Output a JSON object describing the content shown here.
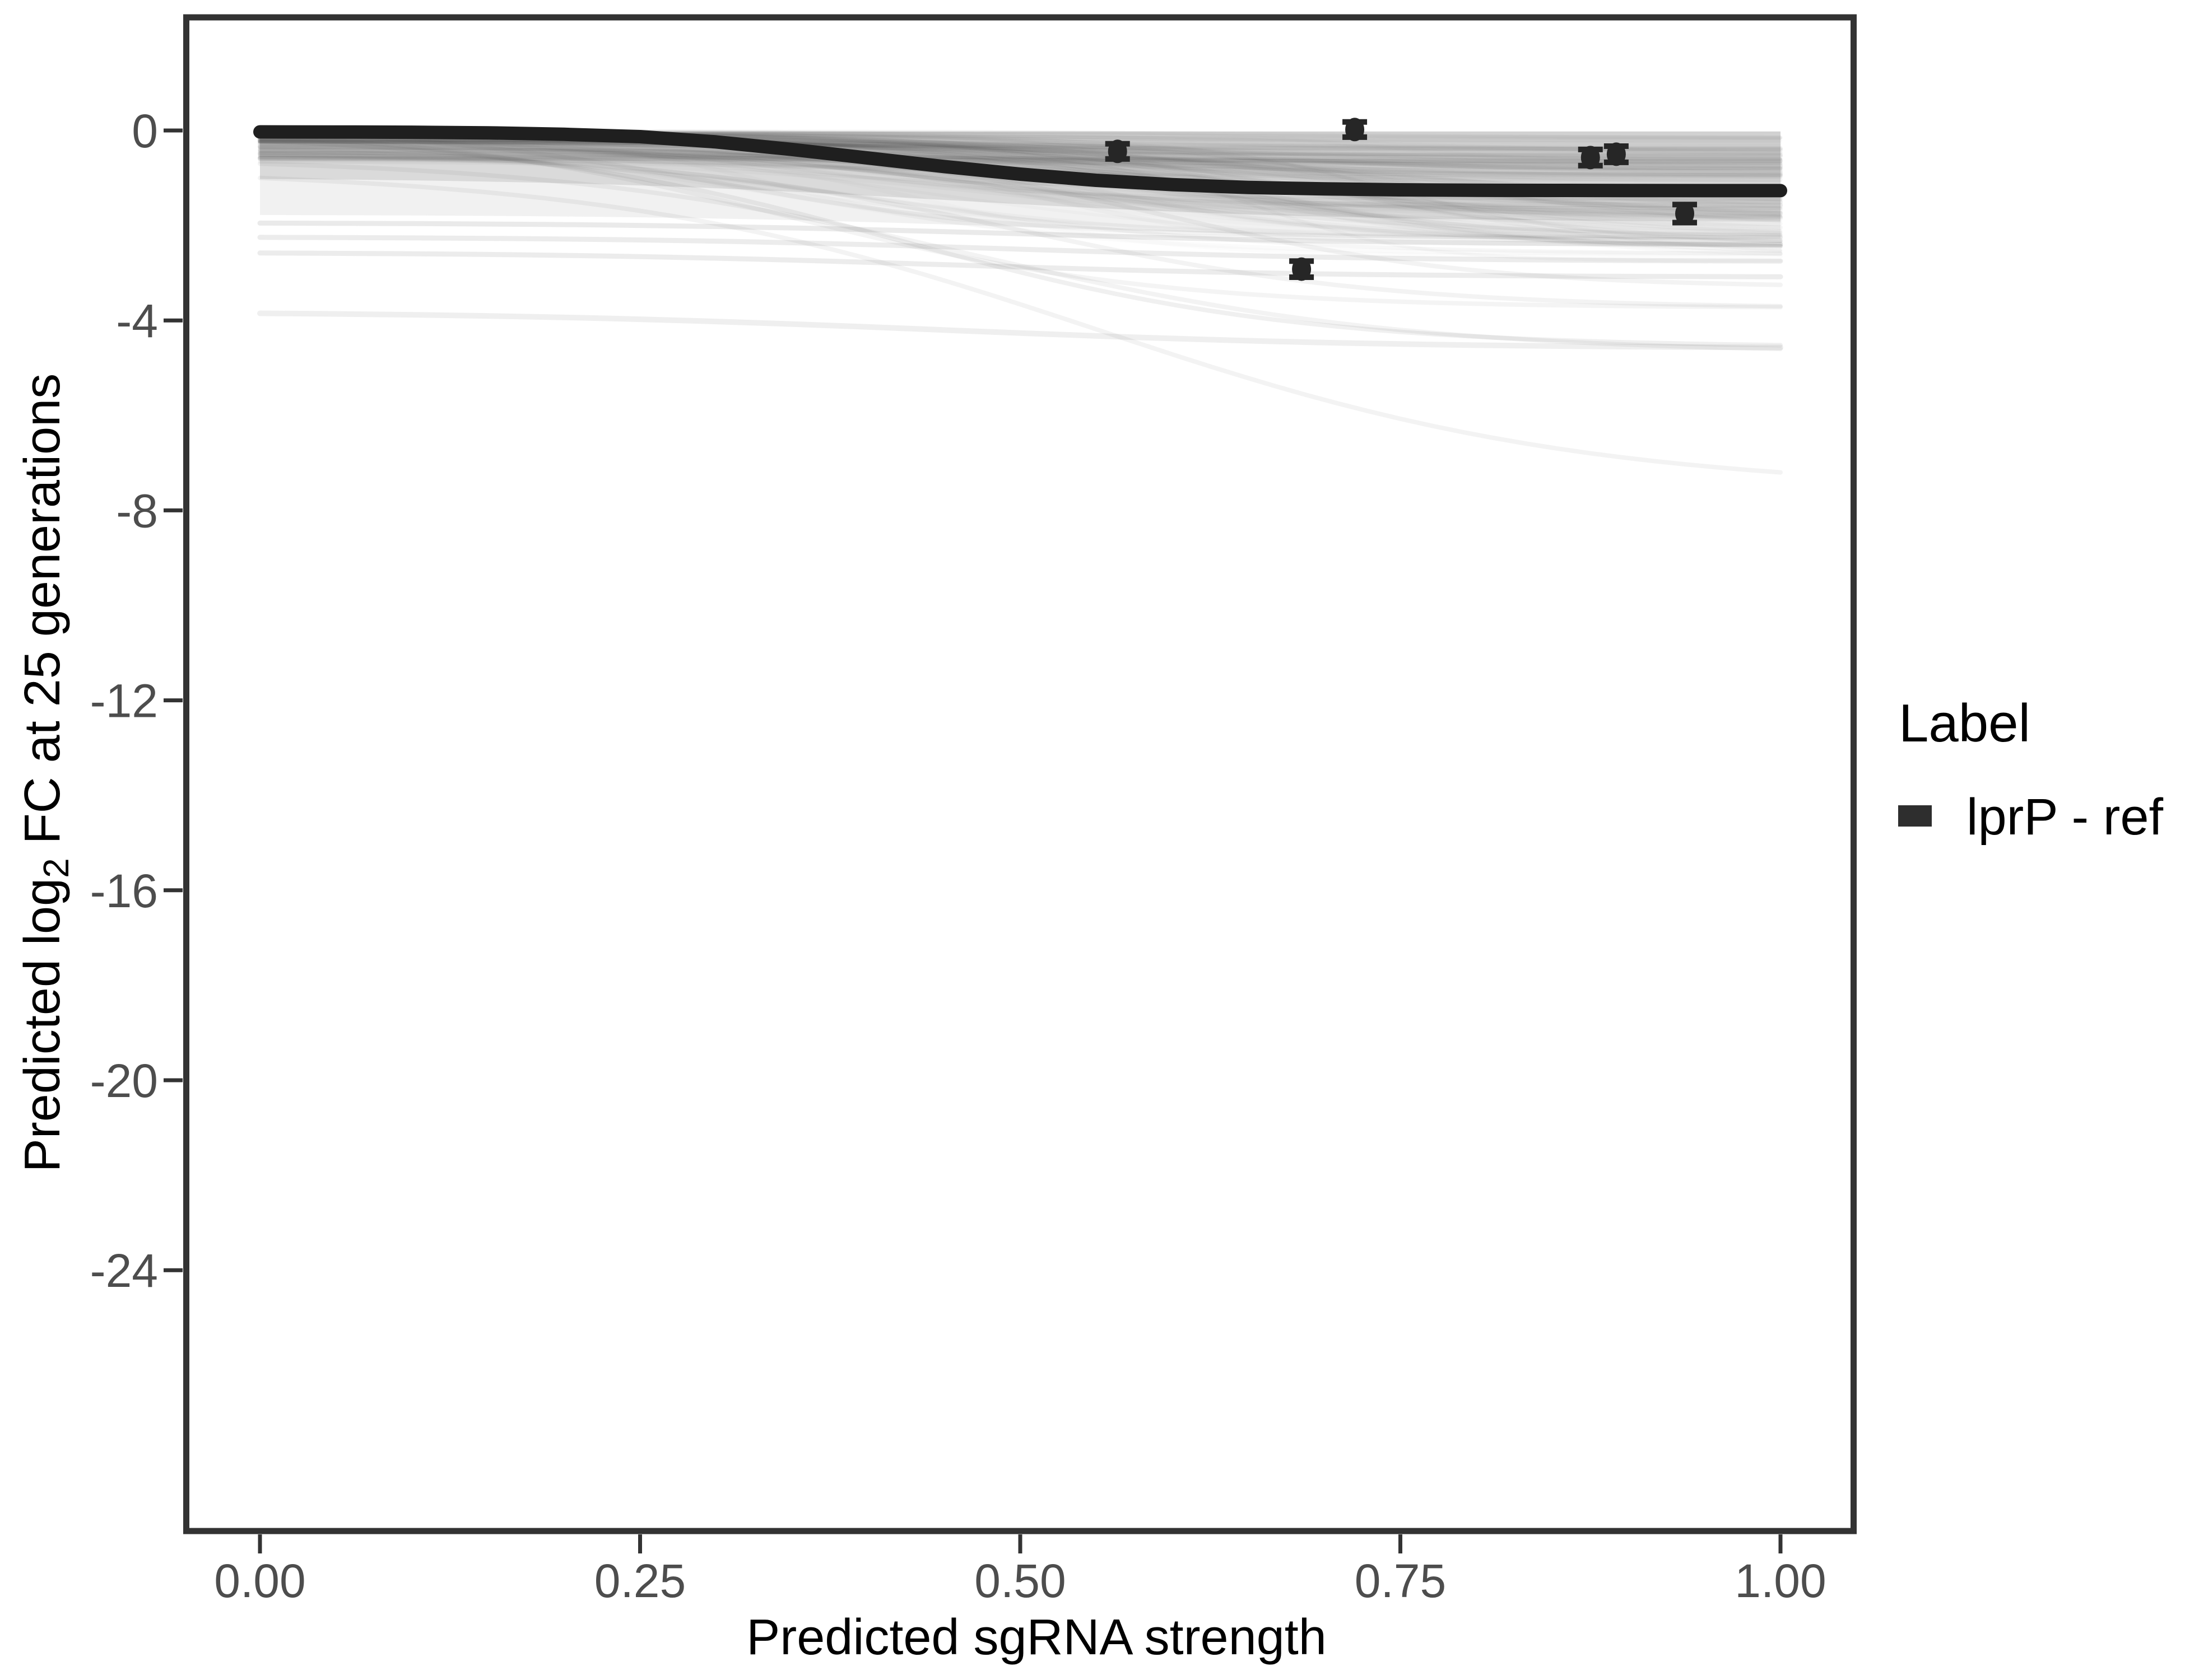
{
  "chart_data": {
    "type": "line",
    "title": "",
    "xlabel": "Predicted sgRNA strength",
    "ylabel": "Predicted  log2 FC at 25 generations",
    "ylabel_parts": {
      "pre": "Predicted  log",
      "sub": "2",
      "post": " FC at 25 generations"
    },
    "grid": false,
    "xlim": [
      -0.049,
      1.048
    ],
    "ylim": [
      -29.5,
      2.4
    ],
    "x_axis": {
      "ticks": [
        0,
        0.25,
        0.5,
        0.75,
        1.0
      ],
      "labels": [
        "0.00",
        "0.25",
        "0.50",
        "0.75",
        "1.00"
      ]
    },
    "y_axis": {
      "ticks": [
        0,
        -4,
        -8,
        -12,
        -16,
        -20,
        -24
      ],
      "labels": [
        "0",
        "-4",
        "-8",
        "-12",
        "-16",
        "-20",
        "-24"
      ]
    },
    "legend": {
      "title": "Label",
      "position": "right",
      "entries": [
        {
          "label": "lprP - ref",
          "color": "#2e2e2e"
        }
      ]
    },
    "main_curve": {
      "name": "lprP - ref",
      "color": "#1f1f1f",
      "points": [
        [
          0.0,
          -0.03
        ],
        [
          0.05,
          -0.032
        ],
        [
          0.1,
          -0.036
        ],
        [
          0.15,
          -0.05
        ],
        [
          0.2,
          -0.08
        ],
        [
          0.25,
          -0.13
        ],
        [
          0.3,
          -0.24
        ],
        [
          0.35,
          -0.4
        ],
        [
          0.4,
          -0.58
        ],
        [
          0.45,
          -0.76
        ],
        [
          0.5,
          -0.92
        ],
        [
          0.55,
          -1.05
        ],
        [
          0.6,
          -1.14
        ],
        [
          0.65,
          -1.2
        ],
        [
          0.7,
          -1.23
        ],
        [
          0.75,
          -1.25
        ],
        [
          0.8,
          -1.26
        ],
        [
          0.85,
          -1.262
        ],
        [
          0.9,
          -1.265
        ],
        [
          0.95,
          -1.266
        ],
        [
          1.0,
          -1.266
        ]
      ]
    },
    "measured_points": [
      {
        "x": 0.564,
        "y": -0.44,
        "err": 0.16
      },
      {
        "x": 0.72,
        "y": 0.02,
        "err": 0.16
      },
      {
        "x": 0.875,
        "y": -0.57,
        "err": 0.17
      },
      {
        "x": 0.892,
        "y": -0.5,
        "err": 0.17
      },
      {
        "x": 0.937,
        "y": -1.75,
        "err": 0.19
      },
      {
        "x": 0.685,
        "y": -2.92,
        "err": 0.17
      }
    ],
    "point_color": "#262626",
    "ensemble": {
      "description": "hundreds of semi-transparent grey sigmoid prediction curves spanning x 0 to 1",
      "bands": [
        {
          "top": -0.02,
          "y0": -1.02,
          "drop": 0.9,
          "m": 0.45,
          "s": 0.13,
          "fill": "rgba(60,60,60,0.12)"
        },
        {
          "top": -0.02,
          "y0": -1.78,
          "drop": 0.5,
          "m": 0.5,
          "s": 0.12,
          "fill": "rgba(60,60,60,0.07)"
        },
        {
          "top": -0.02,
          "y0": -0.34,
          "drop": 0.24,
          "m": 0.5,
          "s": 0.12,
          "fill": "rgba(60,60,60,0.06)"
        }
      ],
      "generator": {
        "seed": 7,
        "count": 150,
        "y0_base": -0.02,
        "y0_spread": 0.66,
        "amp_min": 0.12,
        "amp_scale": 2.3,
        "amp_pow": 1.8,
        "m_min": 0.3,
        "m_span": 0.45,
        "s_min": 0.05,
        "s_span": 0.1,
        "alpha_min": 0.015,
        "alpha_span": 0.025,
        "width_min": 5,
        "width_span": 4
      },
      "special_curves": [
        {
          "y0": -1.95,
          "drop": 0.45,
          "m": 0.5,
          "s": 0.13,
          "alpha": 0.1,
          "w": 9
        },
        {
          "y0": -2.25,
          "drop": 0.5,
          "m": 0.5,
          "s": 0.13,
          "alpha": 0.09,
          "w": 9
        },
        {
          "y0": -2.58,
          "drop": 0.5,
          "m": 0.45,
          "s": 0.13,
          "alpha": 0.09,
          "w": 9
        },
        {
          "y0": -3.85,
          "drop": 0.72,
          "m": 0.45,
          "s": 0.15,
          "alpha": 0.08,
          "w": 10
        },
        {
          "y0": -0.22,
          "drop": 4.3,
          "m": 0.42,
          "s": 0.13,
          "alpha": 0.07,
          "w": 8
        },
        {
          "y0": -0.5,
          "drop": 3.2,
          "m": 0.5,
          "s": 0.12,
          "alpha": 0.06,
          "w": 8
        },
        {
          "y0": -1.0,
          "drop": 6.2,
          "m": 0.55,
          "s": 0.16,
          "alpha": 0.06,
          "w": 8
        },
        {
          "y0": -0.35,
          "drop": 2.9,
          "m": 0.6,
          "s": 0.1,
          "alpha": 0.06,
          "w": 8
        },
        {
          "y0": -0.12,
          "drop": 3.6,
          "m": 0.35,
          "s": 0.12,
          "alpha": 0.05,
          "w": 8
        },
        {
          "y0": -0.7,
          "drop": 3.9,
          "m": 0.47,
          "s": 0.14,
          "alpha": 0.06,
          "w": 8
        },
        {
          "y0": -0.05,
          "drop": 2.2,
          "m": 0.3,
          "s": 0.1,
          "alpha": 0.06,
          "w": 8
        }
      ]
    },
    "panel": {
      "border_color": "#333333",
      "tick_color": "#333333",
      "tick_label_color": "#4d4d4d",
      "background": "#ffffff"
    }
  }
}
